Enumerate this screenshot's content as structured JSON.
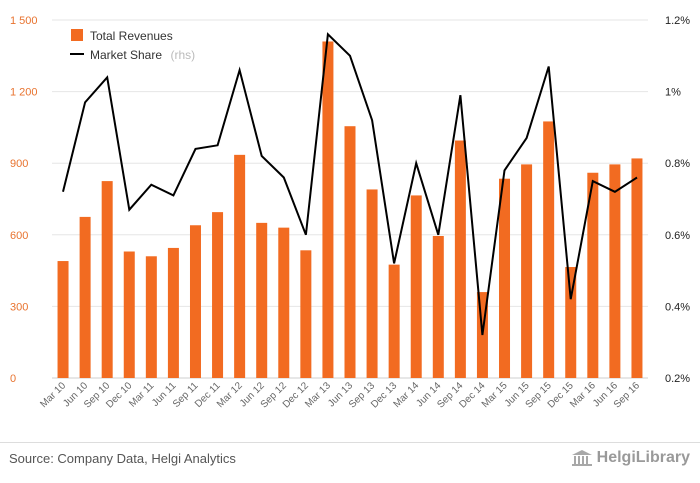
{
  "chart_data": {
    "type": "bar",
    "categories": [
      "Mar 10",
      "Jun 10",
      "Sep 10",
      "Dec 10",
      "Mar 11",
      "Jun 11",
      "Sep 11",
      "Dec 11",
      "Mar 12",
      "Jun 12",
      "Sep 12",
      "Dec 12",
      "Mar 13",
      "Jun 13",
      "Sep 13",
      "Dec 13",
      "Mar 14",
      "Jun 14",
      "Sep 14",
      "Dec 14",
      "Mar 15",
      "Jun 15",
      "Sep 15",
      "Dec 15",
      "Mar 16",
      "Jun 16",
      "Sep 16"
    ],
    "series": [
      {
        "name": "Total Revenues",
        "type": "bar",
        "axis": "left",
        "color": "#f26b21",
        "values": [
          490,
          675,
          825,
          530,
          510,
          545,
          640,
          695,
          935,
          650,
          630,
          535,
          1410,
          1055,
          790,
          475,
          765,
          595,
          995,
          360,
          835,
          895,
          1075,
          465,
          860,
          895,
          920
        ]
      },
      {
        "name": "Market Share",
        "legend_suffix": "(rhs)",
        "type": "line",
        "axis": "right",
        "color": "#000000",
        "values": [
          0.72,
          0.97,
          1.04,
          0.67,
          0.74,
          0.71,
          0.84,
          0.85,
          1.06,
          0.82,
          0.76,
          0.6,
          1.16,
          1.1,
          0.92,
          0.52,
          0.8,
          0.6,
          0.99,
          0.32,
          0.78,
          0.87,
          1.07,
          0.42,
          0.75,
          0.72,
          0.76
        ]
      }
    ],
    "y_left": {
      "ylim": [
        0,
        1500
      ],
      "ticks": [
        0,
        300,
        600,
        900,
        1200,
        1500
      ],
      "tick_labels": [
        "0",
        "300",
        "600",
        "900",
        "1 200",
        "1 500"
      ],
      "color": "#e8732f"
    },
    "y_right": {
      "ylim": [
        0.2,
        1.2
      ],
      "ticks": [
        0.2,
        0.4,
        0.6,
        0.8,
        1.0,
        1.2
      ],
      "tick_labels": [
        "0.2%",
        "0.4%",
        "0.6%",
        "0.8%",
        "1%",
        "1.2%"
      ]
    },
    "grid": "horizontal",
    "legend_position": "top-left"
  },
  "footer": {
    "source": "Source: Company Data, Helgi Analytics",
    "brand": "HelgiLibrary"
  },
  "icons": {
    "brand_logo": "library-building-icon"
  }
}
